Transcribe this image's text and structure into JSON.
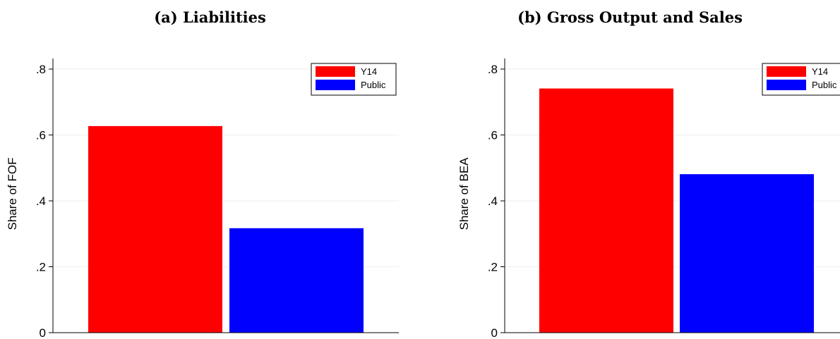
{
  "chart_data": [
    {
      "type": "bar",
      "title": "(a) Liabilities",
      "ylabel": "Share of FOF",
      "xlabel": "",
      "ylim": [
        0,
        0.8
      ],
      "yticks": [
        0,
        0.2,
        0.4,
        0.6,
        0.8
      ],
      "ytick_labels": [
        "0",
        ".2",
        ".4",
        ".6",
        ".8"
      ],
      "grid": true,
      "legend": "top-right",
      "series": [
        {
          "name": "Y14",
          "value": 0.627,
          "color": "#ff0000"
        },
        {
          "name": "Public",
          "value": 0.317,
          "color": "#0000ff"
        }
      ]
    },
    {
      "type": "bar",
      "title": "(b) Gross Output and Sales",
      "ylabel": "Share of BEA",
      "xlabel": "",
      "ylim": [
        0,
        0.8
      ],
      "yticks": [
        0,
        0.2,
        0.4,
        0.6,
        0.8
      ],
      "ytick_labels": [
        "0",
        ".2",
        ".4",
        ".6",
        ".8"
      ],
      "grid": true,
      "legend": "top-right",
      "series": [
        {
          "name": "Y14",
          "value": 0.741,
          "color": "#ff0000"
        },
        {
          "name": "Public",
          "value": 0.481,
          "color": "#0000ff"
        }
      ]
    }
  ]
}
